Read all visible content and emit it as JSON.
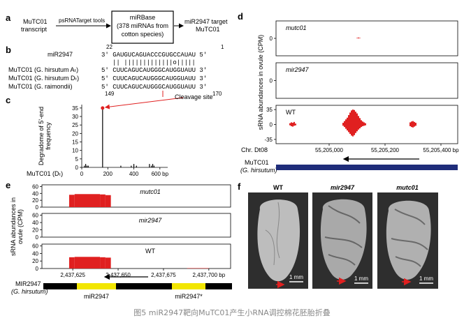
{
  "figure": {
    "panel_labels": [
      "a",
      "b",
      "c",
      "d",
      "e",
      "f"
    ],
    "a": {
      "source": [
        "MuTC01",
        "transcript"
      ],
      "tool": "psRNATarget tools",
      "box": [
        "miRBase",
        "(378 miRNAs from",
        "cotton species)"
      ],
      "result": [
        "miR2947 target",
        "MuTC01"
      ]
    },
    "b": {
      "mirna_label": "miR2947",
      "mirna_start": 22,
      "mirna_end": 1,
      "mirna_seq": "3' GAUGUCAGUACCCGUGCCAUAU 5'",
      "pairing": "|| |||||||||||||o|||||",
      "targets": [
        {
          "label": "MuTC01 (G. hirsutum Aₜ)",
          "seq": "5' CUUCAGUCAUGGGCAUGGUAUU 3'"
        },
        {
          "label": "MuTC01 (G. hirsutum Dₜ)",
          "seq": "5' CUUCAGUCAUGGGCAUGGUAUU 3'"
        },
        {
          "label": "MuTC01 (G. raimondii)",
          "seq": "5' CUUCAGUCAUGGGCAUGGUAUU 3'"
        }
      ],
      "target_start": 149,
      "target_end": 170
    },
    "d_gene": {
      "name": "MuTC01",
      "species": "(G. hirsutum)"
    },
    "e_gene": {
      "name": "MIR2947",
      "species": "(G. hirsutum)",
      "features": [
        "miR2947",
        "miR2947*"
      ]
    },
    "f": {
      "titles": [
        "WT",
        "mir2947",
        "mutc01"
      ],
      "scale_bar": "1 mm"
    },
    "caption": "图5 miR2947靶向MuTC01产生小RNA调控棉花胚胎折叠"
  },
  "chart_data": [
    {
      "type": "bar",
      "x": [
        20,
        30,
        40,
        50,
        160,
        300,
        380,
        400,
        420,
        520,
        535,
        545,
        555
      ],
      "values": [
        1,
        2,
        1,
        1,
        35,
        1,
        1,
        2,
        1,
        2,
        1,
        2,
        1
      ],
      "color": "#000000",
      "xlim": [
        0,
        660
      ],
      "ylim": [
        0,
        37
      ],
      "xticks": [
        0,
        200,
        400,
        {
          "value": 600,
          "label": "600 bp"
        }
      ],
      "yticks": [
        0,
        5,
        10,
        15,
        20,
        25,
        30,
        35
      ],
      "ylabel": [
        "Degradome of 5'-end",
        "frequency"
      ],
      "xlabel": "MuTC01 (Dₜ)",
      "annotation": {
        "text": "Cleavage site",
        "x": 160,
        "y": 35,
        "color": "#e02020"
      }
    },
    {
      "type": "bar",
      "title": "mutc01",
      "italic": true,
      "x": [
        55205100,
        55205105,
        55205110
      ],
      "series": [
        {
          "color": "#e02020",
          "values": [
            1,
            2,
            1
          ]
        }
      ],
      "xlim": [
        55204810,
        55205460
      ],
      "ylim": [
        -45,
        45
      ],
      "yticks": [
        0
      ]
    },
    {
      "type": "bar",
      "title": "mir2947",
      "italic": true,
      "xlim": [
        55204810,
        55205460
      ],
      "ylim": [
        -45,
        45
      ],
      "yticks": [
        0
      ],
      "ylabel": "sRNA abundances in ovule (CPM)"
    },
    {
      "type": "bar",
      "title": "WT",
      "italic": false,
      "x": [
        55204860,
        55204865,
        55204870,
        55204875,
        55204880,
        55205050,
        55205055,
        55205060,
        55205065,
        55205070,
        55205075,
        55205080,
        55205085,
        55205090,
        55205095,
        55205100,
        55205105,
        55205110,
        55205115,
        55205120,
        55205125,
        55205130,
        55205290,
        55205295,
        55205300,
        55205305,
        55205310
      ],
      "series": [
        {
          "color": "#e02020",
          "values": [
            3,
            5,
            4,
            6,
            2,
            4,
            8,
            12,
            16,
            22,
            28,
            33,
            35,
            34,
            30,
            26,
            20,
            15,
            10,
            7,
            5,
            3,
            5,
            7,
            8,
            6,
            4
          ]
        },
        {
          "color": "#e02020",
          "values": [
            -2,
            -4,
            -5,
            -3,
            -2,
            -3,
            -6,
            -10,
            -14,
            -18,
            -22,
            -26,
            -28,
            -25,
            -20,
            -16,
            -12,
            -9,
            -6,
            -4,
            -3,
            -2,
            -4,
            -6,
            -7,
            -5,
            -3
          ]
        }
      ],
      "xlim": [
        55204810,
        55205460
      ],
      "ylim": [
        -45,
        45
      ],
      "yticks": [
        35,
        0,
        -35
      ],
      "xlabel": "Chr. Dt08",
      "xticks": [
        {
          "value": 55205000,
          "label": "55,205,000"
        },
        {
          "value": 55205200,
          "label": "55,205,200"
        },
        {
          "value": 55205400,
          "label": "55,205,400 bp"
        }
      ]
    },
    {
      "type": "histogram",
      "title": "mutc01",
      "italic": true,
      "bins": [
        2437623,
        2437626,
        2437640,
        2437643,
        2437646
      ],
      "values": [
        36,
        38,
        37,
        35
      ],
      "color": "#e02020",
      "xlim": [
        2437608,
        2437712
      ],
      "ylim": [
        0,
        65
      ],
      "yticks": [
        0,
        20,
        40,
        60
      ]
    },
    {
      "type": "histogram",
      "title": "mir2947",
      "italic": true,
      "xlim": [
        2437608,
        2437712
      ],
      "ylim": [
        0,
        65
      ],
      "yticks": [
        0,
        20,
        40,
        60
      ],
      "ylabel": [
        "sRNA abundances in",
        "ovule (CPM)"
      ]
    },
    {
      "type": "histogram",
      "title": "WT",
      "italic": false,
      "bins": [
        2437623,
        2437626,
        2437640,
        2437643,
        2437646,
        2437688,
        2437700
      ],
      "values": [
        30,
        31,
        30,
        29,
        0,
        1
      ],
      "color": "#e02020",
      "xlim": [
        2437608,
        2437712
      ],
      "ylim": [
        0,
        65
      ],
      "yticks": [
        0,
        20,
        40,
        60
      ],
      "xticks": [
        {
          "value": 2437625,
          "label": "2,437,625"
        },
        {
          "value": 2437650,
          "label": "2,437,650"
        },
        {
          "value": 2437675,
          "label": "2,437,675"
        },
        {
          "value": 2437700,
          "label": "2,437,700 bp"
        }
      ]
    }
  ]
}
